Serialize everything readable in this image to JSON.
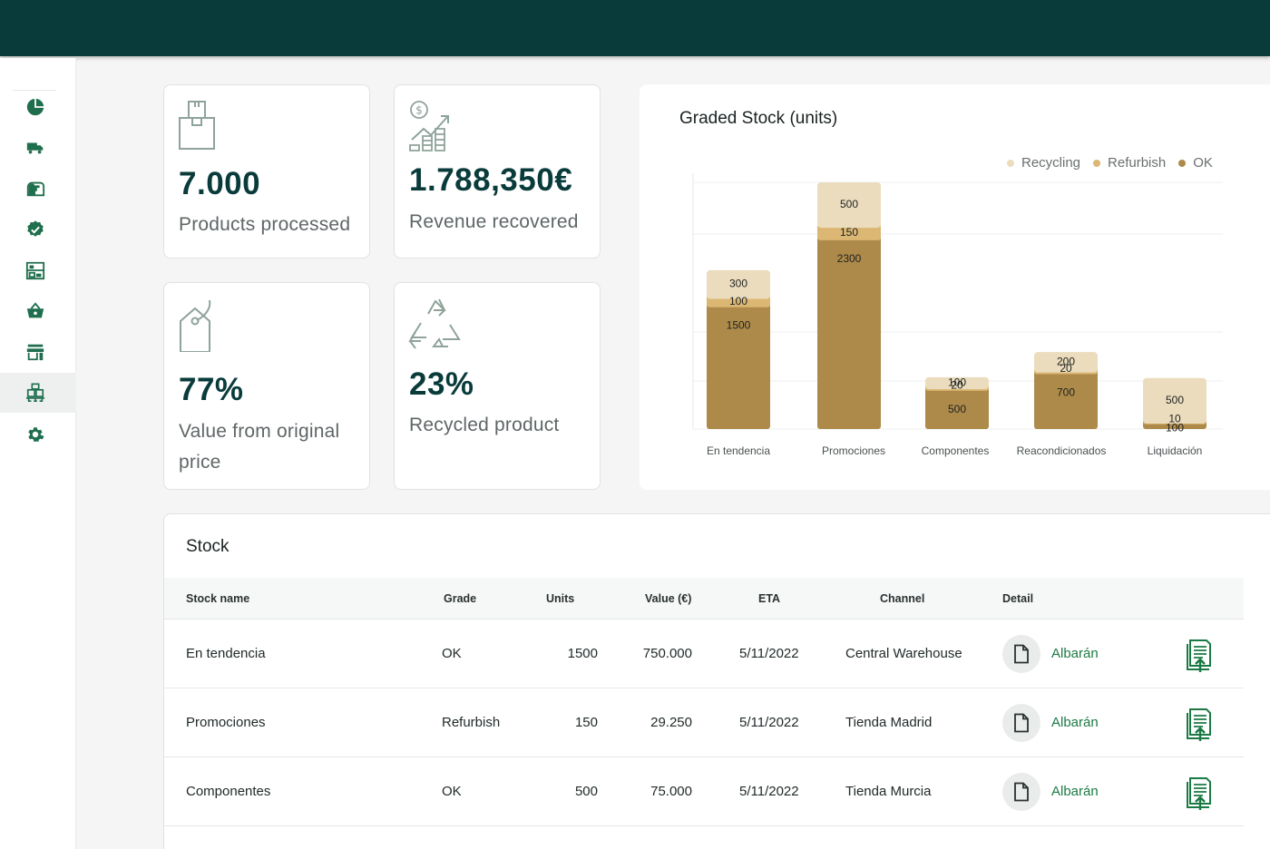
{
  "sidebar": {
    "items": [
      {
        "icon": "pie-chart-icon"
      },
      {
        "icon": "truck-icon"
      },
      {
        "icon": "mailbox-icon"
      },
      {
        "icon": "verified-badge-icon"
      },
      {
        "icon": "warehouse-shelves-icon"
      },
      {
        "icon": "basket-icon"
      },
      {
        "icon": "store-icon"
      },
      {
        "icon": "pallet-boxes-icon",
        "active": true
      },
      {
        "icon": "gear-icon"
      }
    ]
  },
  "kpis": [
    {
      "icon": "box-icon",
      "value": "7.000",
      "label": "Products processed"
    },
    {
      "icon": "revenue-growth-icon",
      "value": "1.788,350€",
      "label": "Revenue recovered"
    },
    {
      "icon": "price-tag-icon",
      "value": "77%",
      "label": "Value from original price"
    },
    {
      "icon": "recycle-icon",
      "value": "23%",
      "label": "Recycled product"
    }
  ],
  "chart_data": {
    "type": "bar",
    "stacked": true,
    "title": "Graded Stock (units)",
    "categories": [
      "En tendencia",
      "Promociones",
      "Componentes",
      "Reacondicionados",
      "Liquidación"
    ],
    "series": [
      {
        "name": "OK",
        "color": "#ad8a49",
        "values": [
          1500,
          2300,
          500,
          700,
          100
        ]
      },
      {
        "name": "Refurbish",
        "color": "#dcb774",
        "values": [
          100,
          150,
          20,
          20,
          10
        ]
      },
      {
        "name": "Recycling",
        "color": "#ebdcbd",
        "values": [
          300,
          500,
          100,
          200,
          500
        ]
      }
    ],
    "legend_order": [
      "Recycling",
      "Refurbish",
      "OK"
    ],
    "legend": "top-right",
    "grid": true
  },
  "stock": {
    "title": "Stock",
    "columns": [
      "Stock name",
      "Grade",
      "Units",
      "Value (€)",
      "ETA",
      "Channel",
      "Detail"
    ],
    "rows": [
      {
        "name": "En tendencia",
        "grade": "OK",
        "units": "1500",
        "value": "750.000",
        "eta": "5/11/2022",
        "channel": "Central Warehouse",
        "detail": "Albarán"
      },
      {
        "name": "Promociones",
        "grade": "Refurbish",
        "units": "150",
        "value": "29.250",
        "eta": "5/11/2022",
        "channel": "Tienda Madrid",
        "detail": "Albarán"
      },
      {
        "name": "Componentes",
        "grade": "OK",
        "units": "500",
        "value": "75.000",
        "eta": "5/11/2022",
        "channel": "Tienda Murcia",
        "detail": "Albarán"
      }
    ]
  }
}
